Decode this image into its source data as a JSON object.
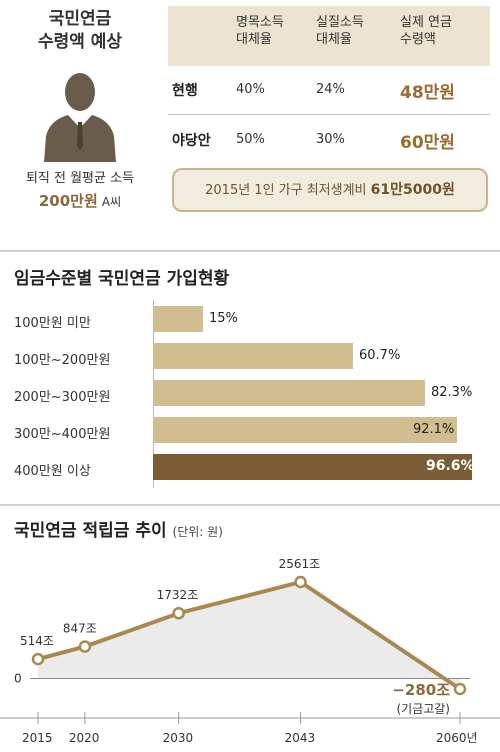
{
  "pension_forecast": {
    "title_line1": "국민연금",
    "title_line2": "수령액 예상",
    "person_caption_line1": "퇴직 전 월평균 소득",
    "person_caption_amount": "200만원",
    "person_caption_name": "A씨",
    "columns": [
      "명목소득\n대체율",
      "실질소득\n대체율",
      "실제 연금\n수령액"
    ],
    "col1_l1": "명목소득",
    "col1_l2": "대체율",
    "col2_l1": "실질소득",
    "col2_l2": "대체율",
    "col3_l1": "실제 연금",
    "col3_l2": "수령액",
    "rows": [
      {
        "label": "현행",
        "nominal": "40%",
        "real": "24%",
        "amount": "48만원"
      },
      {
        "label": "야당안",
        "nominal": "50%",
        "real": "30%",
        "amount": "60만원"
      }
    ],
    "note_prefix": "2015년 1인 가구 최저생계비 ",
    "note_value": "61만5000원"
  },
  "chart_data": [
    {
      "type": "bar",
      "title": "임금수준별 국민연금 가입현황",
      "categories": [
        "100만원 미만",
        "100만~200만원",
        "200만~300만원",
        "300만~400만원",
        "400만원 이상"
      ],
      "values": [
        15,
        60.7,
        82.3,
        92.1,
        96.6
      ],
      "value_labels": [
        "15%",
        "60.7%",
        "82.3%",
        "92.1%",
        "96.6%"
      ],
      "unit": "%",
      "xlim": [
        0,
        100
      ],
      "highlight_index": 4,
      "colors": {
        "bar": "#d1bd8f",
        "highlight": "#7a5c35"
      }
    },
    {
      "type": "line",
      "title": "국민연금 적립금 추이",
      "unit_note": "(단위: 원)",
      "x": [
        "2015",
        "2020",
        "2030",
        "2043",
        "2060년"
      ],
      "x_numeric": [
        2015,
        2020,
        2030,
        2043,
        2060
      ],
      "values": [
        514,
        847,
        1732,
        2561,
        -280
      ],
      "value_labels": [
        "514조",
        "847조",
        "1732조",
        "2561조",
        "−280조"
      ],
      "zero_label": "0",
      "annotation": "(기금고갈)",
      "colors": {
        "line": "#a98850",
        "fill": "#ebebeb"
      }
    }
  ]
}
